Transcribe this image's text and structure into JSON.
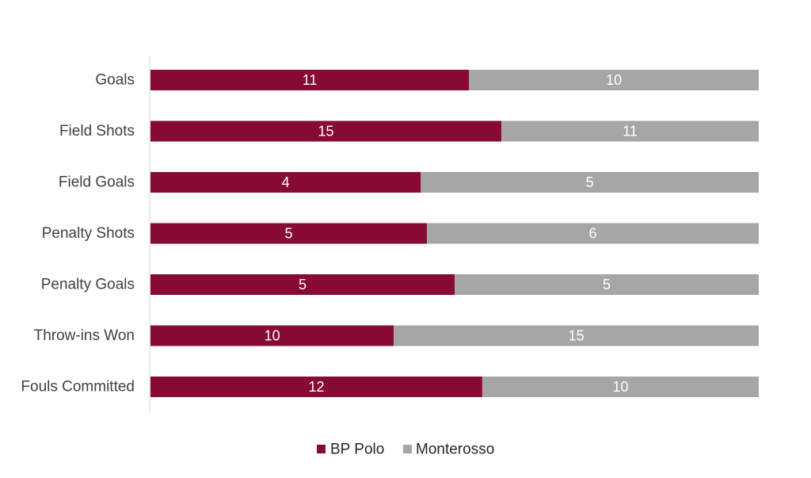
{
  "chart_data": {
    "type": "bar",
    "orientation": "horizontal",
    "stacked": true,
    "normalized": true,
    "categories": [
      "Goals",
      "Field Shots",
      "Field Goals",
      "Penalty Shots",
      "Penalty Goals",
      "Throw-ins Won",
      "Fouls Committed"
    ],
    "series": [
      {
        "name": "BP Polo",
        "color": "#870a35",
        "values": [
          11,
          15,
          4,
          5,
          5,
          10,
          12
        ]
      },
      {
        "name": "Monterosso",
        "color": "#a6a6a6",
        "values": [
          10,
          11,
          5,
          6,
          5,
          15,
          10
        ]
      }
    ],
    "title": "",
    "xlabel": "",
    "ylabel": "",
    "legend_position": "bottom",
    "grid": false
  }
}
